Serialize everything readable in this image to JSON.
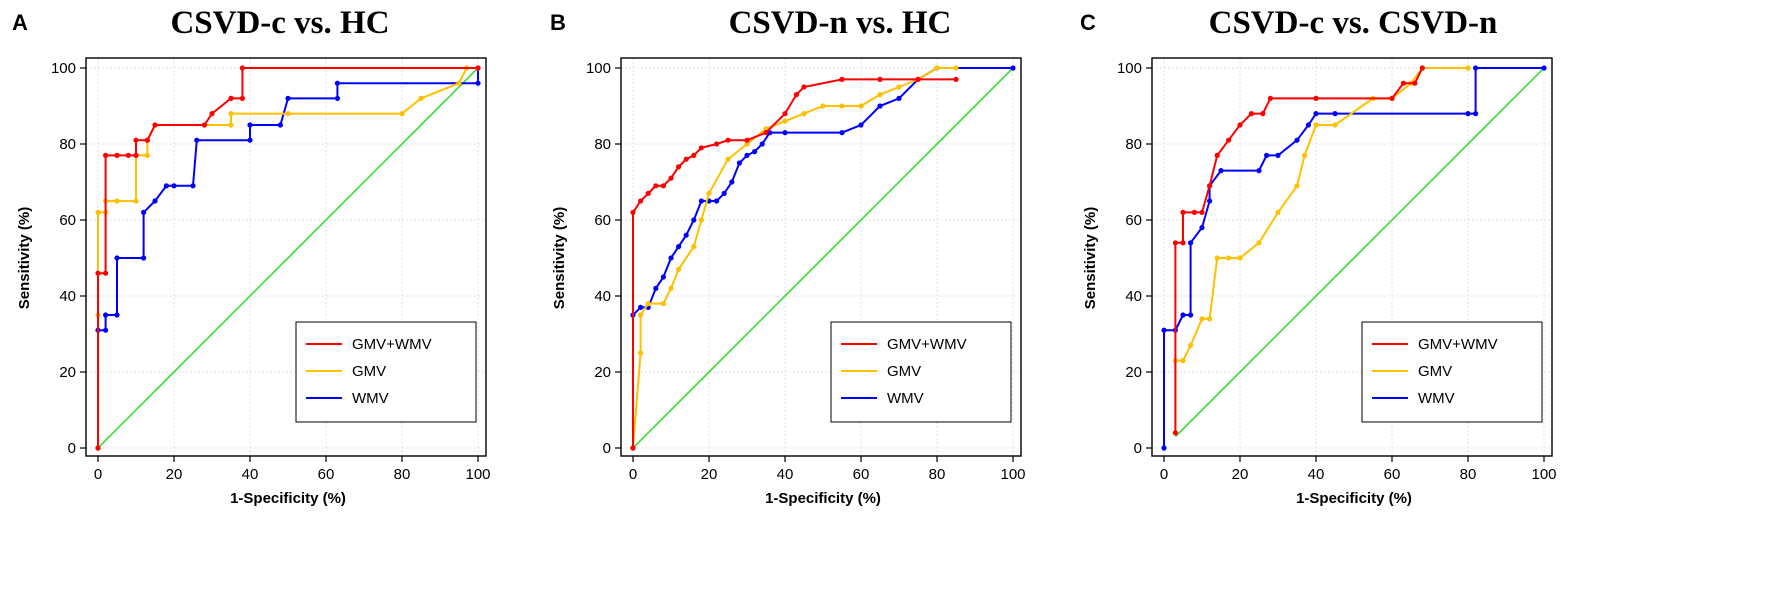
{
  "chart_data": [
    {
      "type": "line",
      "panel": "A",
      "title": "CSVD-c vs. HC",
      "xlabel": "1-Specificity (%)",
      "ylabel": "Sensitivity (%)",
      "xlim": [
        0,
        100
      ],
      "ylim": [
        0,
        100
      ],
      "xticks": [
        0,
        20,
        40,
        60,
        80,
        100
      ],
      "yticks": [
        0,
        20,
        40,
        60,
        80,
        100
      ],
      "legend_position": "bottom-right",
      "reference_line": {
        "color": "#22dd22",
        "x": [
          0,
          100
        ],
        "y": [
          0,
          100
        ]
      },
      "series": [
        {
          "name": "GMV+WMV",
          "color": "#ff0000",
          "x": [
            0,
            0,
            2,
            2,
            5,
            8,
            10,
            10,
            13,
            13,
            15,
            28,
            30,
            35,
            38,
            38,
            100
          ],
          "y": [
            0,
            46,
            46,
            77,
            77,
            77,
            77,
            81,
            81,
            81,
            85,
            85,
            88,
            92,
            92,
            100,
            100
          ]
        },
        {
          "name": "GMV",
          "color": "#ffc000",
          "x": [
            0,
            0,
            0,
            2,
            2,
            5,
            10,
            10,
            13,
            13,
            15,
            35,
            35,
            50,
            80,
            85,
            95,
            97,
            100
          ],
          "y": [
            0,
            35,
            62,
            62,
            65,
            65,
            65,
            77,
            77,
            81,
            85,
            85,
            88,
            88,
            88,
            92,
            96,
            100,
            100
          ]
        },
        {
          "name": "WMV",
          "color": "#0000ff",
          "x": [
            0,
            0,
            2,
            2,
            5,
            5,
            12,
            12,
            15,
            18,
            20,
            25,
            26,
            40,
            40,
            48,
            50,
            63,
            63,
            100,
            100
          ],
          "y": [
            0,
            31,
            31,
            35,
            35,
            50,
            50,
            62,
            65,
            69,
            69,
            69,
            81,
            81,
            85,
            85,
            92,
            92,
            96,
            96,
            100
          ]
        }
      ]
    },
    {
      "type": "line",
      "panel": "B",
      "title": "CSVD-n vs. HC",
      "xlabel": "1-Specificity (%)",
      "ylabel": "Sensitivity (%)",
      "xlim": [
        0,
        100
      ],
      "ylim": [
        0,
        100
      ],
      "xticks": [
        0,
        20,
        40,
        60,
        80,
        100
      ],
      "yticks": [
        0,
        20,
        40,
        60,
        80,
        100
      ],
      "legend_position": "bottom-right",
      "reference_line": {
        "color": "#22dd22",
        "x": [
          0,
          100
        ],
        "y": [
          0,
          100
        ]
      },
      "series": [
        {
          "name": "GMV+WMV",
          "color": "#ff0000",
          "x": [
            0,
            0,
            2,
            4,
            6,
            8,
            10,
            12,
            14,
            16,
            18,
            22,
            25,
            30,
            35,
            40,
            43,
            45,
            55,
            65,
            75,
            85
          ],
          "y": [
            0,
            62,
            65,
            67,
            69,
            69,
            71,
            74,
            76,
            77,
            79,
            80,
            81,
            81,
            83,
            88,
            93,
            95,
            97,
            97,
            97,
            97
          ]
        },
        {
          "name": "GMV",
          "color": "#ffc000",
          "x": [
            0,
            2,
            2,
            4,
            8,
            10,
            12,
            16,
            18,
            20,
            25,
            30,
            35,
            40,
            45,
            50,
            55,
            60,
            65,
            70,
            75,
            80,
            85
          ],
          "y": [
            0,
            25,
            35,
            38,
            38,
            42,
            47,
            53,
            60,
            67,
            76,
            80,
            84,
            86,
            88,
            90,
            90,
            90,
            93,
            95,
            97,
            100,
            100
          ]
        },
        {
          "name": "WMV",
          "color": "#0000ff",
          "x": [
            0,
            0,
            2,
            4,
            6,
            8,
            10,
            12,
            14,
            16,
            18,
            20,
            22,
            24,
            26,
            28,
            30,
            32,
            34,
            36,
            40,
            55,
            60,
            65,
            70,
            75,
            80,
            100
          ],
          "y": [
            0,
            35,
            37,
            37,
            42,
            45,
            50,
            53,
            56,
            60,
            65,
            65,
            65,
            67,
            70,
            75,
            77,
            78,
            80,
            83,
            83,
            83,
            85,
            90,
            92,
            97,
            100,
            100
          ]
        }
      ]
    },
    {
      "type": "line",
      "panel": "C",
      "title": "CSVD-c vs. CSVD-n",
      "xlabel": "1-Specificity (%)",
      "ylabel": "Sensitivity (%)",
      "xlim": [
        0,
        100
      ],
      "ylim": [
        0,
        100
      ],
      "xticks": [
        0,
        20,
        40,
        60,
        80,
        100
      ],
      "yticks": [
        0,
        20,
        40,
        60,
        80,
        100
      ],
      "legend_position": "bottom-right",
      "reference_line": {
        "color": "#22dd22",
        "x": [
          3,
          100
        ],
        "y": [
          3,
          100
        ]
      },
      "series": [
        {
          "name": "GMV+WMV",
          "color": "#ff0000",
          "x": [
            3,
            3,
            5,
            5,
            8,
            10,
            12,
            14,
            17,
            20,
            23,
            26,
            28,
            40,
            60,
            63,
            66,
            68
          ],
          "y": [
            4,
            54,
            54,
            62,
            62,
            62,
            69,
            77,
            81,
            85,
            88,
            88,
            92,
            92,
            92,
            96,
            96,
            100
          ]
        },
        {
          "name": "GMV",
          "color": "#ffc000",
          "x": [
            3,
            3,
            5,
            7,
            10,
            12,
            14,
            17,
            20,
            25,
            30,
            35,
            37,
            40,
            45,
            55,
            60,
            65,
            68,
            80
          ],
          "y": [
            4,
            23,
            23,
            27,
            34,
            34,
            50,
            50,
            50,
            54,
            62,
            69,
            77,
            85,
            85,
            92,
            92,
            96,
            100,
            100
          ]
        },
        {
          "name": "WMV",
          "color": "#0000ff",
          "x": [
            0,
            0,
            3,
            5,
            7,
            7,
            10,
            12,
            12,
            15,
            25,
            27,
            30,
            35,
            38,
            40,
            45,
            80,
            82,
            82,
            100
          ],
          "y": [
            0,
            31,
            31,
            35,
            35,
            54,
            58,
            65,
            69,
            73,
            73,
            77,
            77,
            81,
            85,
            88,
            88,
            88,
            88,
            100,
            100
          ]
        }
      ]
    }
  ]
}
